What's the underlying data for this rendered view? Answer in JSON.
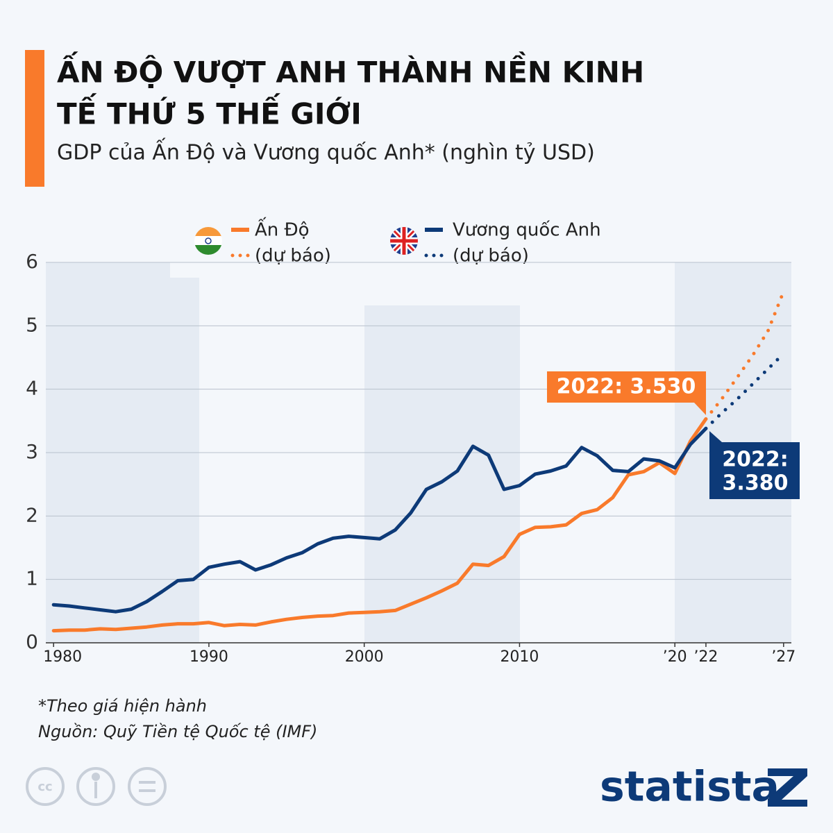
{
  "chart_data": {
    "type": "line",
    "title": [
      "ẤN ĐỘ VƯỢT ANH THÀNH NỀN KINH",
      "TẾ THỨ 5 THẾ GIỚI"
    ],
    "subtitle": "GDP của Ấn Độ và Vương quốc Anh* (nghìn tỷ USD)",
    "xlim": [
      1979.5,
      2027.5
    ],
    "xticks": [
      1980,
      1990,
      2000,
      2010,
      {
        "value": 2020,
        "label": "’20"
      },
      {
        "value": 2022,
        "label": "’22"
      },
      {
        "value": 2027,
        "label": "’27"
      }
    ],
    "ylim": [
      0,
      6
    ],
    "yticks": [
      0,
      1,
      2,
      3,
      4,
      5,
      6
    ],
    "grid": true,
    "series": [
      {
        "name": "Ấn Độ",
        "color": "#f97a2b",
        "style": "solid",
        "x": [
          1980,
          1981,
          1982,
          1983,
          1984,
          1985,
          1986,
          1987,
          1988,
          1989,
          1990,
          1991,
          1992,
          1993,
          1994,
          1995,
          1996,
          1997,
          1998,
          1999,
          2000,
          2001,
          2002,
          2003,
          2004,
          2005,
          2006,
          2007,
          2008,
          2009,
          2010,
          2011,
          2012,
          2013,
          2014,
          2015,
          2016,
          2017,
          2018,
          2019,
          2020,
          2021,
          2022
        ],
        "values": [
          0.19,
          0.2,
          0.2,
          0.22,
          0.21,
          0.23,
          0.25,
          0.28,
          0.3,
          0.3,
          0.32,
          0.27,
          0.29,
          0.28,
          0.33,
          0.37,
          0.4,
          0.42,
          0.43,
          0.47,
          0.48,
          0.49,
          0.51,
          0.61,
          0.71,
          0.82,
          0.94,
          1.24,
          1.22,
          1.36,
          1.71,
          1.82,
          1.83,
          1.86,
          2.04,
          2.1,
          2.29,
          2.65,
          2.7,
          2.84,
          2.67,
          3.18,
          3.53
        ]
      },
      {
        "name": "(dự báo)",
        "color": "#f97a2b",
        "style": "dotted",
        "x": [
          2022,
          2023,
          2024,
          2025,
          2026,
          2027
        ],
        "values": [
          3.53,
          3.84,
          4.18,
          4.53,
          4.92,
          5.54
        ]
      },
      {
        "name": "Vương quốc Anh",
        "color": "#0d3a78",
        "style": "solid",
        "x": [
          1980,
          1981,
          1982,
          1983,
          1984,
          1985,
          1986,
          1987,
          1988,
          1989,
          1990,
          1991,
          1992,
          1993,
          1994,
          1995,
          1996,
          1997,
          1998,
          1999,
          2000,
          2001,
          2002,
          2003,
          2004,
          2005,
          2006,
          2007,
          2008,
          2009,
          2010,
          2011,
          2012,
          2013,
          2014,
          2015,
          2016,
          2017,
          2018,
          2019,
          2020,
          2021,
          2022
        ],
        "values": [
          0.6,
          0.58,
          0.55,
          0.52,
          0.49,
          0.53,
          0.65,
          0.81,
          0.98,
          1.0,
          1.19,
          1.24,
          1.28,
          1.15,
          1.23,
          1.34,
          1.42,
          1.56,
          1.65,
          1.68,
          1.66,
          1.64,
          1.78,
          2.05,
          2.42,
          2.54,
          2.71,
          3.1,
          2.96,
          2.42,
          2.48,
          2.66,
          2.71,
          2.79,
          3.08,
          2.95,
          2.72,
          2.7,
          2.9,
          2.87,
          2.76,
          3.13,
          3.38
        ]
      },
      {
        "name": "(dự báo)",
        "color": "#0d3a78",
        "style": "dotted",
        "x": [
          2022,
          2023,
          2024,
          2025,
          2026,
          2027
        ],
        "values": [
          3.38,
          3.62,
          3.84,
          4.08,
          4.32,
          4.56
        ]
      }
    ],
    "annotations": [
      {
        "lines": [
          "2022: 3.530"
        ],
        "color": "#f97a2b"
      },
      {
        "lines": [
          "2022:",
          "3.380"
        ],
        "color": "#0d3a78"
      }
    ],
    "footnotes": [
      "*Theo giá hiện hành",
      "Nguồn: Quỹ Tiền tệ Quốc tệ (IMF)"
    ],
    "brand": "statista"
  }
}
